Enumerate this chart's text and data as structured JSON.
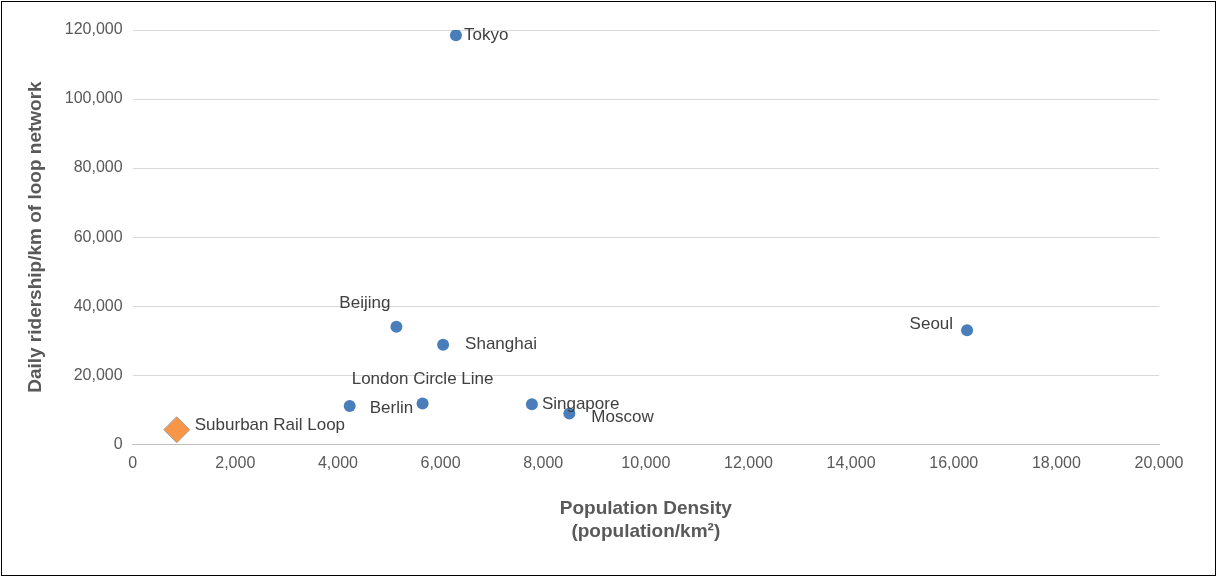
{
  "chart_data": {
    "type": "scatter",
    "xlabel": "Population Density\n(population/km²)",
    "ylabel": "Daily ridership/km of loop network",
    "series": [
      {
        "color": "#4a7ebb",
        "marker": "circle",
        "x": [
          6300,
          5140,
          6050,
          16260,
          5650,
          4230,
          7780,
          8510
        ],
        "values": [
          118500,
          34000,
          28800,
          33000,
          11800,
          11100,
          11600,
          8900
        ],
        "value_labels": [
          "Tokyo",
          "Beijing",
          "Shanghai",
          "Seoul",
          "London Circle Line",
          "Berlin",
          "Singapore",
          "Moscow"
        ]
      },
      {
        "color": "#f79646",
        "marker": "diamond",
        "x": [
          860
        ],
        "values": [
          4200
        ],
        "value_labels": [
          "Suburban Rail Loop"
        ]
      }
    ],
    "xlim": [
      0,
      20000
    ],
    "xticks": [
      0,
      {
        "value": 2000,
        "label": "2,000"
      },
      {
        "value": 4000,
        "label": "4,000"
      },
      {
        "value": 6000,
        "label": "6,000"
      },
      {
        "value": 8000,
        "label": "8,000"
      },
      {
        "value": 10000,
        "label": "10,000"
      },
      {
        "value": 12000,
        "label": "12,000"
      },
      {
        "value": 14000,
        "label": "14,000"
      },
      {
        "value": 16000,
        "label": "16,000"
      },
      {
        "value": 18000,
        "label": "18,000"
      },
      {
        "value": 20000,
        "label": "20,000"
      }
    ],
    "ylim": [
      0,
      120000
    ],
    "yticks": [
      0,
      {
        "value": 20000,
        "label": "20,000"
      },
      {
        "value": 40000,
        "label": "40,000"
      },
      {
        "value": 60000,
        "label": "60,000"
      },
      {
        "value": 80000,
        "label": "80,000"
      },
      {
        "value": 100000,
        "label": "100,000"
      },
      {
        "value": 120000,
        "label": "120,000"
      }
    ],
    "grid": "y",
    "legend": false
  }
}
